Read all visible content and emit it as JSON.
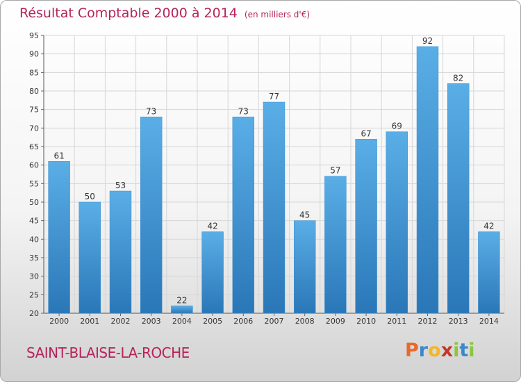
{
  "header": {
    "title": "Résultat Comptable 2000 à 2014",
    "unit": "(en milliers d'€)"
  },
  "footer": {
    "commune": "SAINT-BLAISE-LA-ROCHE",
    "brand_letters": [
      "P",
      "r",
      "o",
      "x",
      "i",
      "t",
      "i"
    ],
    "brand_colors": [
      "#e8692b",
      "#3a89c9",
      "#f2b62a",
      "#c0392b",
      "#8cc63f",
      "#3a89c9",
      "#8cc63f"
    ]
  },
  "colors": {
    "bar": "#4a9fdc",
    "bar_dark": "#2f7fc0",
    "grid": "#d6d6d6",
    "title": "#b5245a"
  },
  "chart_data": {
    "type": "bar",
    "title": "Résultat Comptable 2000 à 2014",
    "subtitle": "(en milliers d'€)",
    "xlabel": "",
    "ylabel": "",
    "categories": [
      "2000",
      "2001",
      "2002",
      "2003",
      "2004",
      "2005",
      "2006",
      "2007",
      "2008",
      "2009",
      "2010",
      "2011",
      "2012",
      "2013",
      "2014"
    ],
    "values": [
      61,
      50,
      53,
      73,
      22,
      42,
      73,
      77,
      45,
      57,
      67,
      69,
      92,
      82,
      42
    ],
    "ylim": [
      20,
      95
    ],
    "yticks": [
      20,
      25,
      30,
      35,
      40,
      45,
      50,
      55,
      60,
      65,
      70,
      75,
      80,
      85,
      90,
      95
    ],
    "grid": true,
    "legend": "none"
  }
}
